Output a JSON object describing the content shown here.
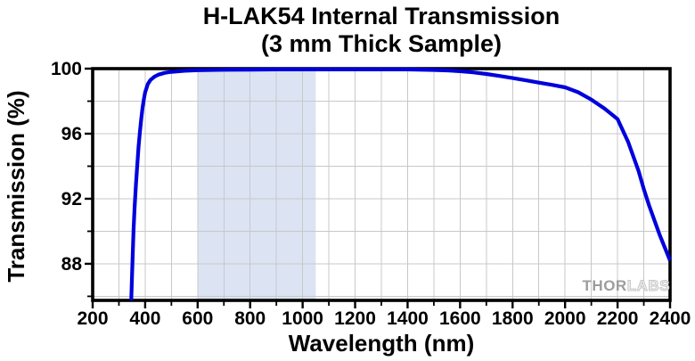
{
  "figure": {
    "title_line1": "H-LAK54 Internal Transmission",
    "title_line2": "(3 mm Thick Sample)",
    "watermark": {
      "part1": "THOR",
      "part2": "LABS"
    }
  },
  "colors": {
    "curve": "#0000dd",
    "grid": "#c8c8c8",
    "band": "#dce3f3",
    "axis": "#000000",
    "tick_label": "#000000"
  },
  "chart_data": {
    "type": "line",
    "title": "H-LAK54 Internal Transmission (3 mm Thick Sample)",
    "xlabel": "Wavelength (nm)",
    "ylabel": "Transmission (%)",
    "xlim": [
      200,
      2400
    ],
    "ylim": [
      85.75,
      100
    ],
    "grid": true,
    "legend_position": "none",
    "x_major_ticks": [
      200,
      400,
      600,
      800,
      1000,
      1200,
      1400,
      1600,
      1800,
      2000,
      2200,
      2400
    ],
    "x_minor_step": 100,
    "y_major_ticks": [
      100,
      96,
      92,
      88
    ],
    "y_minor_ticks": [
      98,
      94,
      90,
      86
    ],
    "grid_x_step": 100,
    "grid_y_step": 2,
    "shaded_band": {
      "x_start": 600,
      "x_end": 1050
    },
    "series": [
      {
        "name": "H-LAK54 internal transmission, 3 mm sample",
        "points": [
          [
            347,
            85.75
          ],
          [
            350,
            87.3
          ],
          [
            353,
            88.8
          ],
          [
            356,
            90.1
          ],
          [
            360,
            91.5
          ],
          [
            365,
            92.9
          ],
          [
            370,
            94.1
          ],
          [
            375,
            95.2
          ],
          [
            380,
            96.1
          ],
          [
            385,
            96.9
          ],
          [
            390,
            97.6
          ],
          [
            395,
            98.1
          ],
          [
            400,
            98.55
          ],
          [
            410,
            99.05
          ],
          [
            420,
            99.3
          ],
          [
            435,
            99.5
          ],
          [
            450,
            99.63
          ],
          [
            475,
            99.74
          ],
          [
            500,
            99.8
          ],
          [
            550,
            99.87
          ],
          [
            600,
            99.9
          ],
          [
            700,
            99.93
          ],
          [
            800,
            99.94
          ],
          [
            900,
            99.95
          ],
          [
            1000,
            99.95
          ],
          [
            1100,
            99.95
          ],
          [
            1200,
            99.95
          ],
          [
            1300,
            99.95
          ],
          [
            1400,
            99.95
          ],
          [
            1500,
            99.92
          ],
          [
            1550,
            99.89
          ],
          [
            1600,
            99.84
          ],
          [
            1650,
            99.77
          ],
          [
            1700,
            99.67
          ],
          [
            1750,
            99.55
          ],
          [
            1800,
            99.42
          ],
          [
            1850,
            99.28
          ],
          [
            1900,
            99.14
          ],
          [
            1950,
            99.0
          ],
          [
            2000,
            98.85
          ],
          [
            2050,
            98.55
          ],
          [
            2100,
            98.1
          ],
          [
            2150,
            97.55
          ],
          [
            2200,
            96.9
          ],
          [
            2240,
            95.5
          ],
          [
            2280,
            93.7
          ],
          [
            2300,
            92.6
          ],
          [
            2320,
            91.6
          ],
          [
            2360,
            89.8
          ],
          [
            2400,
            88.2
          ]
        ]
      }
    ]
  }
}
